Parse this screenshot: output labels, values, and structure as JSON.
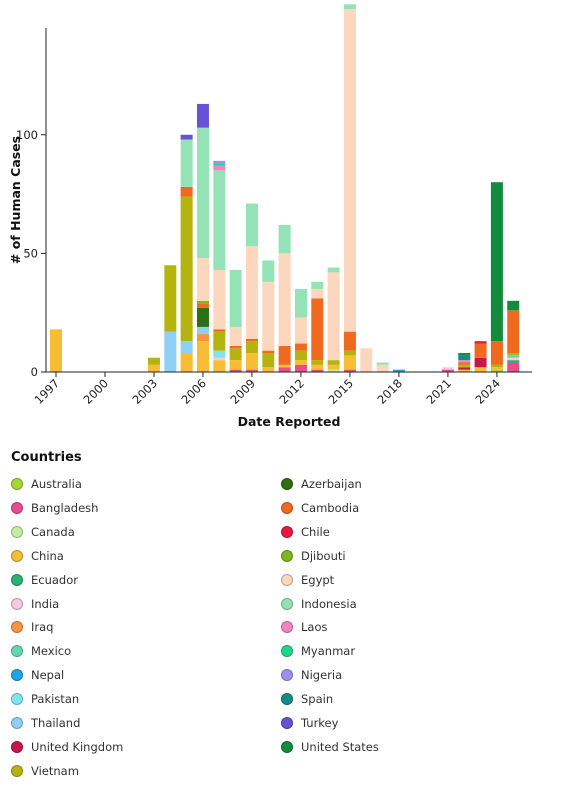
{
  "chart_data": {
    "type": "bar",
    "stacked": true,
    "title": "",
    "xlabel": "Date Reported",
    "ylabel": "# of Human Cases",
    "ylim": [
      0,
      145
    ],
    "yticks": [
      0,
      50,
      100
    ],
    "x_tick_labels": [
      "1997",
      "2000",
      "2003",
      "2006",
      "2009",
      "2012",
      "2015",
      "2018",
      "2021",
      "2024"
    ],
    "categories": [
      "1997",
      "1998",
      "1999",
      "2000",
      "2001",
      "2002",
      "2003",
      "2004",
      "2005",
      "2006",
      "2007",
      "2008",
      "2009",
      "2010",
      "2011",
      "2012",
      "2013",
      "2014",
      "2015",
      "2016",
      "2017",
      "2018",
      "2019",
      "2020",
      "2021",
      "2022",
      "2023",
      "2024",
      "2025"
    ],
    "series": [
      {
        "name": "Australia",
        "color": "#a3d934",
        "values": [
          0,
          0,
          0,
          0,
          0,
          0,
          0,
          0,
          0,
          0,
          0,
          0,
          0,
          0,
          0,
          0,
          0,
          0,
          0,
          0,
          0,
          0,
          0,
          0,
          0,
          0,
          0,
          1,
          0
        ]
      },
      {
        "name": "Bangladesh",
        "color": "#e64d8a",
        "values": [
          0,
          0,
          0,
          0,
          0,
          0,
          0,
          0,
          0,
          0,
          0,
          1,
          1,
          0,
          2,
          3,
          1,
          0,
          1,
          0,
          0,
          0,
          0,
          0,
          1,
          0,
          0,
          0,
          4
        ]
      },
      {
        "name": "Canada",
        "color": "#c2ef9f",
        "values": [
          0,
          0,
          0,
          0,
          0,
          0,
          0,
          0,
          0,
          0,
          0,
          0,
          0,
          0,
          0,
          0,
          0,
          1,
          0,
          0,
          0,
          0,
          0,
          0,
          0,
          0,
          0,
          0,
          0
        ]
      },
      {
        "name": "China",
        "color": "#f7bd35",
        "values": [
          18,
          0,
          0,
          0,
          0,
          0,
          3,
          0,
          8,
          13,
          5,
          4,
          7,
          2,
          1,
          2,
          2,
          2,
          6,
          0,
          0,
          0,
          0,
          0,
          0,
          1,
          2,
          1,
          0
        ]
      },
      {
        "name": "Ecuador",
        "color": "#27b36d",
        "values": [
          0,
          0,
          0,
          0,
          0,
          0,
          0,
          0,
          0,
          0,
          0,
          0,
          0,
          0,
          0,
          0,
          0,
          0,
          0,
          0,
          0,
          0,
          0,
          0,
          0,
          0,
          0,
          0,
          1
        ]
      },
      {
        "name": "India",
        "color": "#f8c9df",
        "values": [
          0,
          0,
          0,
          0,
          0,
          0,
          0,
          0,
          0,
          0,
          1,
          0,
          0,
          0,
          0,
          0,
          0,
          0,
          0,
          0,
          0,
          0,
          0,
          0,
          1,
          0,
          0,
          0,
          1
        ]
      },
      {
        "name": "Iraq",
        "color": "#f79540",
        "values": [
          0,
          0,
          0,
          0,
          0,
          0,
          0,
          0,
          0,
          3,
          0,
          0,
          0,
          0,
          0,
          0,
          0,
          0,
          0,
          0,
          0,
          0,
          0,
          0,
          0,
          0,
          0,
          0,
          0
        ]
      },
      {
        "name": "Mexico",
        "color": "#62d8b0",
        "values": [
          0,
          0,
          0,
          0,
          0,
          0,
          0,
          0,
          0,
          0,
          0,
          0,
          0,
          0,
          0,
          0,
          0,
          0,
          0,
          0,
          0,
          0,
          0,
          0,
          0,
          0,
          0,
          0,
          1
        ]
      },
      {
        "name": "Nepal",
        "color": "#1ea5ea",
        "values": [
          0,
          0,
          0,
          0,
          0,
          0,
          0,
          0,
          0,
          0,
          0,
          0,
          0,
          0,
          0,
          0,
          0,
          0,
          0,
          0,
          0,
          1,
          0,
          0,
          0,
          0,
          0,
          0,
          0
        ]
      },
      {
        "name": "Pakistan",
        "color": "#7fe4ee",
        "values": [
          0,
          0,
          0,
          0,
          0,
          0,
          0,
          0,
          0,
          0,
          3,
          0,
          0,
          0,
          0,
          0,
          0,
          0,
          0,
          0,
          0,
          0,
          0,
          0,
          0,
          0,
          0,
          0,
          0
        ]
      },
      {
        "name": "Thailand",
        "color": "#8ecff5",
        "values": [
          0,
          0,
          0,
          0,
          0,
          0,
          0,
          17,
          5,
          3,
          0,
          0,
          0,
          0,
          0,
          0,
          0,
          0,
          0,
          0,
          0,
          0,
          0,
          0,
          0,
          0,
          0,
          0,
          0
        ]
      },
      {
        "name": "United Kingdom",
        "color": "#c8154a",
        "values": [
          0,
          0,
          0,
          0,
          0,
          0,
          0,
          0,
          0,
          0,
          0,
          0,
          0,
          0,
          0,
          0,
          0,
          0,
          0,
          0,
          0,
          0,
          0,
          0,
          0,
          1,
          4,
          0,
          0
        ]
      },
      {
        "name": "Vietnam",
        "color": "#b5b40f",
        "values": [
          0,
          0,
          0,
          0,
          0,
          0,
          3,
          28,
          61,
          0,
          8,
          5,
          5,
          6,
          0,
          4,
          2,
          2,
          2,
          0,
          0,
          0,
          0,
          0,
          0,
          1,
          0,
          1,
          1
        ]
      },
      {
        "name": "Azerbaijan",
        "color": "#2d6e16",
        "values": [
          0,
          0,
          0,
          0,
          0,
          0,
          0,
          0,
          0,
          8,
          0,
          0,
          0,
          0,
          0,
          0,
          0,
          0,
          0,
          0,
          0,
          0,
          0,
          0,
          0,
          0,
          0,
          0,
          0
        ]
      },
      {
        "name": "Cambodia",
        "color": "#ef6a1f",
        "values": [
          0,
          0,
          0,
          0,
          0,
          0,
          0,
          0,
          4,
          2,
          1,
          1,
          1,
          1,
          8,
          3,
          26,
          0,
          8,
          0,
          0,
          0,
          0,
          0,
          0,
          1,
          6,
          10,
          18
        ]
      },
      {
        "name": "Chile",
        "color": "#e8173f",
        "values": [
          0,
          0,
          0,
          0,
          0,
          0,
          0,
          0,
          0,
          0,
          0,
          0,
          0,
          0,
          0,
          0,
          0,
          0,
          0,
          0,
          0,
          0,
          0,
          0,
          0,
          0,
          1,
          0,
          0
        ]
      },
      {
        "name": "Djibouti",
        "color": "#7fb51f",
        "values": [
          0,
          0,
          0,
          0,
          0,
          0,
          0,
          0,
          0,
          1,
          0,
          0,
          0,
          0,
          0,
          0,
          0,
          0,
          0,
          0,
          0,
          0,
          0,
          0,
          0,
          0,
          0,
          0,
          0
        ]
      },
      {
        "name": "Egypt",
        "color": "#fcd6bd",
        "values": [
          0,
          0,
          0,
          0,
          0,
          0,
          0,
          0,
          0,
          18,
          25,
          8,
          39,
          29,
          39,
          11,
          4,
          37,
          136,
          10,
          3,
          0,
          0,
          0,
          0,
          0,
          0,
          0,
          0
        ]
      },
      {
        "name": "Indonesia",
        "color": "#93e3b7",
        "values": [
          0,
          0,
          0,
          0,
          0,
          0,
          0,
          0,
          20,
          55,
          42,
          24,
          18,
          9,
          12,
          12,
          3,
          2,
          2,
          0,
          1,
          0,
          0,
          0,
          0,
          0,
          0,
          0,
          0
        ]
      },
      {
        "name": "Laos",
        "color": "#f284c4",
        "values": [
          0,
          0,
          0,
          0,
          0,
          0,
          0,
          0,
          0,
          0,
          2,
          0,
          0,
          0,
          0,
          0,
          0,
          0,
          0,
          0,
          0,
          0,
          0,
          0,
          0,
          1,
          0,
          0,
          0
        ]
      },
      {
        "name": "Myanmar",
        "color": "#1fd78c",
        "values": [
          0,
          0,
          0,
          0,
          0,
          0,
          0,
          0,
          0,
          0,
          1,
          0,
          0,
          0,
          0,
          0,
          0,
          0,
          0,
          0,
          0,
          0,
          0,
          0,
          0,
          0,
          0,
          0,
          0
        ]
      },
      {
        "name": "Nigeria",
        "color": "#9e8ff0",
        "values": [
          0,
          0,
          0,
          0,
          0,
          0,
          0,
          0,
          0,
          0,
          1,
          0,
          0,
          0,
          0,
          0,
          0,
          0,
          0,
          0,
          0,
          0,
          0,
          0,
          0,
          0,
          0,
          0,
          0
        ]
      },
      {
        "name": "Spain",
        "color": "#138c8c",
        "values": [
          0,
          0,
          0,
          0,
          0,
          0,
          0,
          0,
          0,
          0,
          0,
          0,
          0,
          0,
          0,
          0,
          0,
          0,
          0,
          0,
          0,
          0,
          0,
          0,
          0,
          2,
          0,
          0,
          0
        ]
      },
      {
        "name": "Turkey",
        "color": "#6751d4",
        "values": [
          0,
          0,
          0,
          0,
          0,
          0,
          0,
          0,
          2,
          10,
          0,
          0,
          0,
          0,
          0,
          0,
          0,
          0,
          0,
          0,
          0,
          0,
          0,
          0,
          0,
          0,
          0,
          0,
          0
        ]
      },
      {
        "name": "United States",
        "color": "#138a3c",
        "values": [
          0,
          0,
          0,
          0,
          0,
          0,
          0,
          0,
          0,
          0,
          0,
          0,
          0,
          0,
          0,
          0,
          0,
          0,
          0,
          0,
          0,
          0,
          0,
          0,
          0,
          1,
          0,
          67,
          4
        ]
      }
    ],
    "legend_title": "Countries",
    "legend_placement": "bottom",
    "grid": false
  }
}
